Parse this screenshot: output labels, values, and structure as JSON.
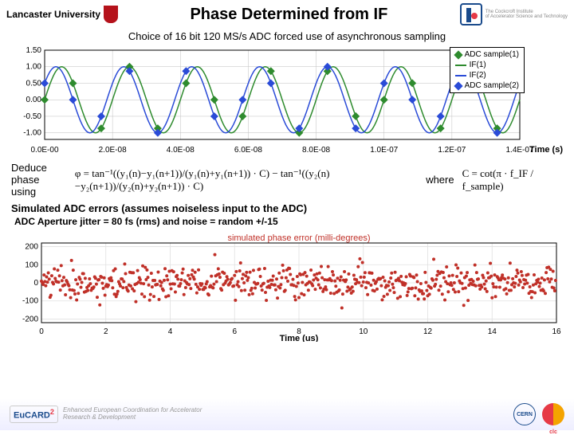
{
  "header": {
    "logo_left": "Lancaster University",
    "title": "Phase Determined from IF",
    "logo_right_name": "The Cockcroft Institute",
    "logo_right_sub": "of Accelerator Science and Technology"
  },
  "subtitle": "Choice of 16 bit 120 MS/s ADC forced use of asynchronous sampling",
  "chart1": {
    "type": "line+scatter",
    "background_color": "#ffffff",
    "grid_color": "#bfbfbf",
    "xlabel": "Time (s)",
    "x_ticks": [
      "0.0E-00",
      "2.0E-08",
      "4.0E-08",
      "6.0E-08",
      "8.0E-08",
      "1.0E-07",
      "1.2E-07",
      "1.4E-07"
    ],
    "xlim": [
      0,
      1.4e-07
    ],
    "y_ticks": [
      -1.0,
      -0.5,
      0.0,
      0.5,
      1.0,
      1.5
    ],
    "ylim": [
      -1.2,
      1.5
    ],
    "legend_items": [
      {
        "label": "ADC sample(1)",
        "type": "marker",
        "color": "#2e8b2e",
        "shape": "diamond"
      },
      {
        "label": "IF(1)",
        "type": "line",
        "color": "#2e8b2e"
      },
      {
        "label": "IF(2)",
        "type": "line",
        "color": "#2a4bd7"
      },
      {
        "label": "ADC sample(2)",
        "type": "marker",
        "color": "#2a4bd7",
        "shape": "diamond"
      }
    ],
    "sine": {
      "freq_hz": 50000000.0,
      "amp": 1.0,
      "phase1_deg": 0,
      "phase2_deg": 30,
      "line_width": 1.5,
      "if1_color": "#2e8b2e",
      "if2_color": "#2a4bd7"
    },
    "samples": {
      "dt": 8.333e-09,
      "n": 17,
      "marker_size": 5,
      "s1_color": "#2e8b2e",
      "s2_color": "#2a4bd7"
    },
    "label_fontsize": 11
  },
  "formula": {
    "label": "Deduce phase using",
    "eq": "φ = tan⁻¹((y₁(n)−y₁(n+1))/(y₁(n)+y₁(n+1)) · C) − tan⁻¹((y₂(n)−y₂(n+1))/(y₂(n)+y₂(n+1)) · C)",
    "where": "where",
    "c_eq": "C = cot(π · f_IF / f_sample)"
  },
  "sim_label": "Simulated ADC errors (assumes noiseless input to the ADC)",
  "adc_label": "ADC Aperture jitter = 80 fs (rms)  and noise = random  +/-15",
  "chart2": {
    "type": "scatter",
    "title": "simulated phase error (milli-degrees)",
    "title_color": "#c03028",
    "title_fontsize": 11,
    "background_color": "#ffffff",
    "grid_color": "#e0e0e0",
    "xlabel": "Time (us)",
    "x_ticks": [
      0,
      2,
      4,
      6,
      8,
      10,
      12,
      14,
      16
    ],
    "xlim": [
      0,
      16
    ],
    "y_ticks": [
      -200,
      -100,
      0,
      100,
      200
    ],
    "ylim": [
      -220,
      220
    ],
    "marker_color": "#c03028",
    "marker_size": 2,
    "n_points": 600,
    "noise_sigma": 45,
    "seed": 42,
    "label_fontsize": 11
  },
  "footer": {
    "eucard": "EuCARD",
    "eucard_sup": "2",
    "tagline1": "Enhanced European Coordination for Accelerator",
    "tagline2": "Research & Development",
    "cern": "CERN",
    "clic": "clc"
  }
}
